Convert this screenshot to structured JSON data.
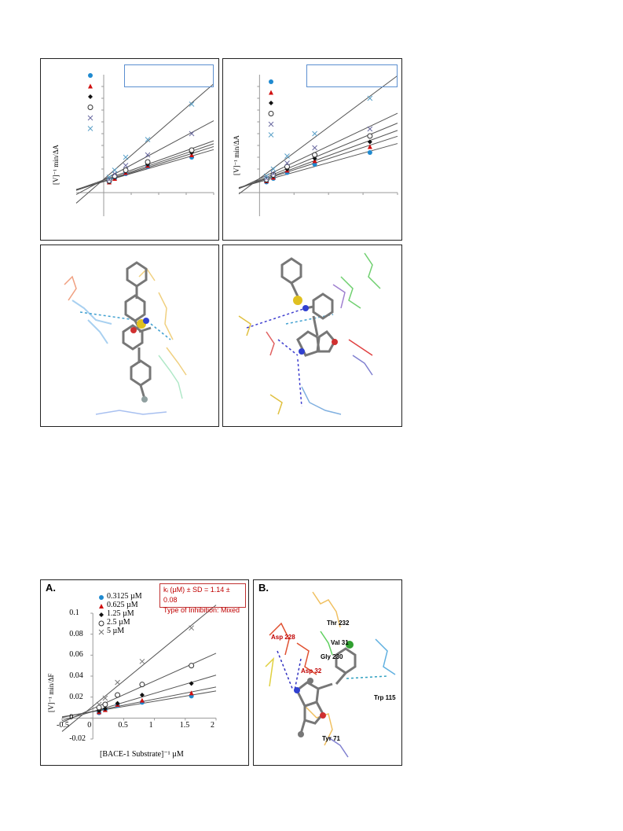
{
  "panels": {
    "top_left_plot": {
      "ylabel": "[V]⁻¹ min/ΔA"
    },
    "top_right_plot": {
      "ylabel": "[V]⁻¹ min/ΔA"
    },
    "bottom_left_plot": {
      "label": "A.",
      "ki_line": "kᵢ (µM) ± SD = 1.14 ± 0.08",
      "type_line": "Type of Inhibition: Mixed"
    },
    "bottom_right_dock": {
      "label": "B.",
      "residues": [
        {
          "name": "Thr 232",
          "color": "#000000"
        },
        {
          "name": "Val 31",
          "color": "#000000"
        },
        {
          "name": "Asp 228",
          "color": "#c00000"
        },
        {
          "name": "Gly 230",
          "color": "#000000"
        },
        {
          "name": "Asp 32",
          "color": "#c00000"
        },
        {
          "name": "Trp 115",
          "color": "#000000"
        },
        {
          "name": "Tyr 71",
          "color": "#000000"
        }
      ]
    }
  },
  "chart_data": [
    {
      "type": "scatter",
      "title": "",
      "ylabel": "[V]⁻¹ min/ΔA",
      "series": [
        {
          "marker": "filled-circle",
          "color": "#1f8ad0",
          "x": [
            0.1,
            0.2,
            0.4,
            0.8,
            1.6
          ],
          "y": [
            0.009,
            0.012,
            0.016,
            0.022,
            0.03
          ]
        },
        {
          "marker": "filled-triangle",
          "color": "#d01010",
          "x": [
            0.1,
            0.2,
            0.4,
            0.8,
            1.6
          ],
          "y": [
            0.009,
            0.012,
            0.017,
            0.023,
            0.032
          ]
        },
        {
          "marker": "filled-diamond",
          "color": "#111111",
          "x": [
            0.1,
            0.2,
            0.4,
            0.8,
            1.6
          ],
          "y": [
            0.009,
            0.013,
            0.018,
            0.024,
            0.034
          ]
        },
        {
          "marker": "open-circle",
          "color": "#333333",
          "x": [
            0.1,
            0.2,
            0.4,
            0.8,
            1.6
          ],
          "y": [
            0.01,
            0.014,
            0.019,
            0.026,
            0.036
          ]
        },
        {
          "marker": "cross",
          "color": "#6a6aa0",
          "x": [
            0.1,
            0.2,
            0.4,
            0.8,
            1.6
          ],
          "y": [
            0.011,
            0.016,
            0.023,
            0.032,
            0.05
          ]
        },
        {
          "marker": "cross",
          "color": "#5aa0c8",
          "x": [
            0.1,
            0.2,
            0.4,
            0.8,
            1.6
          ],
          "y": [
            0.013,
            0.019,
            0.03,
            0.045,
            0.075
          ]
        }
      ]
    },
    {
      "type": "scatter",
      "title": "",
      "ylabel": "[V]⁻¹ min/ΔA",
      "series": [
        {
          "marker": "filled-circle",
          "color": "#1f8ad0",
          "x": [
            0.1,
            0.2,
            0.4,
            0.8,
            1.6
          ],
          "y": [
            0.009,
            0.012,
            0.017,
            0.024,
            0.034
          ]
        },
        {
          "marker": "filled-triangle",
          "color": "#d01010",
          "x": [
            0.1,
            0.2,
            0.4,
            0.8,
            1.6
          ],
          "y": [
            0.01,
            0.013,
            0.019,
            0.027,
            0.039
          ]
        },
        {
          "marker": "filled-diamond",
          "color": "#111111",
          "x": [
            0.1,
            0.2,
            0.4,
            0.8,
            1.6
          ],
          "y": [
            0.01,
            0.014,
            0.02,
            0.029,
            0.043
          ]
        },
        {
          "marker": "open-circle",
          "color": "#333333",
          "x": [
            0.1,
            0.2,
            0.4,
            0.8,
            1.6
          ],
          "y": [
            0.011,
            0.015,
            0.022,
            0.032,
            0.048
          ]
        },
        {
          "marker": "cross",
          "color": "#6a6aa0",
          "x": [
            0.1,
            0.2,
            0.4,
            0.8,
            1.6
          ],
          "y": [
            0.012,
            0.016,
            0.025,
            0.038,
            0.054
          ]
        },
        {
          "marker": "cross",
          "color": "#5aa0c8",
          "x": [
            0.1,
            0.2,
            0.4,
            0.8,
            1.6
          ],
          "y": [
            0.014,
            0.02,
            0.031,
            0.05,
            0.08
          ]
        }
      ]
    },
    {
      "type": "scatter",
      "title": "",
      "xlabel": "[BACE-1 Substrate]⁻¹ µM",
      "ylabel": "[V]⁻¹ min/ΔF",
      "xlim": [
        -0.5,
        2
      ],
      "ylim": [
        -0.02,
        0.1
      ],
      "xticks": [
        "-0.5",
        "0",
        "0.5",
        "1",
        "1.5",
        "2"
      ],
      "yticks": [
        "-0.02",
        "0",
        "0.02",
        "0.04",
        "0.06",
        "0.08",
        "0.1"
      ],
      "legend": "top-left",
      "series": [
        {
          "name": "0.3125 µM",
          "marker": "filled-circle",
          "color": "#1f8ad0",
          "x": [
            0.1,
            0.2,
            0.4,
            0.8,
            1.6
          ],
          "y": [
            0.005,
            0.008,
            0.012,
            0.015,
            0.021
          ]
        },
        {
          "name": "0.625 µM",
          "marker": "filled-triangle",
          "color": "#d01010",
          "x": [
            0.1,
            0.2,
            0.4,
            0.8,
            1.6
          ],
          "y": [
            0.006,
            0.008,
            0.013,
            0.017,
            0.024
          ]
        },
        {
          "name": "1.25 µM",
          "marker": "filled-diamond",
          "color": "#111111",
          "x": [
            0.1,
            0.2,
            0.4,
            0.8,
            1.6
          ],
          "y": [
            0.007,
            0.009,
            0.014,
            0.022,
            0.033
          ]
        },
        {
          "name": "2.5 µM",
          "marker": "open-circle",
          "color": "#333333",
          "x": [
            0.1,
            0.2,
            0.4,
            0.8,
            1.6
          ],
          "y": [
            0.01,
            0.013,
            0.022,
            0.032,
            0.05
          ]
        },
        {
          "name": "5 µM",
          "marker": "cross",
          "color": "#777777",
          "x": [
            0.1,
            0.2,
            0.4,
            0.8,
            1.6
          ],
          "y": [
            0.013,
            0.019,
            0.034,
            0.054,
            0.086
          ]
        }
      ]
    }
  ]
}
